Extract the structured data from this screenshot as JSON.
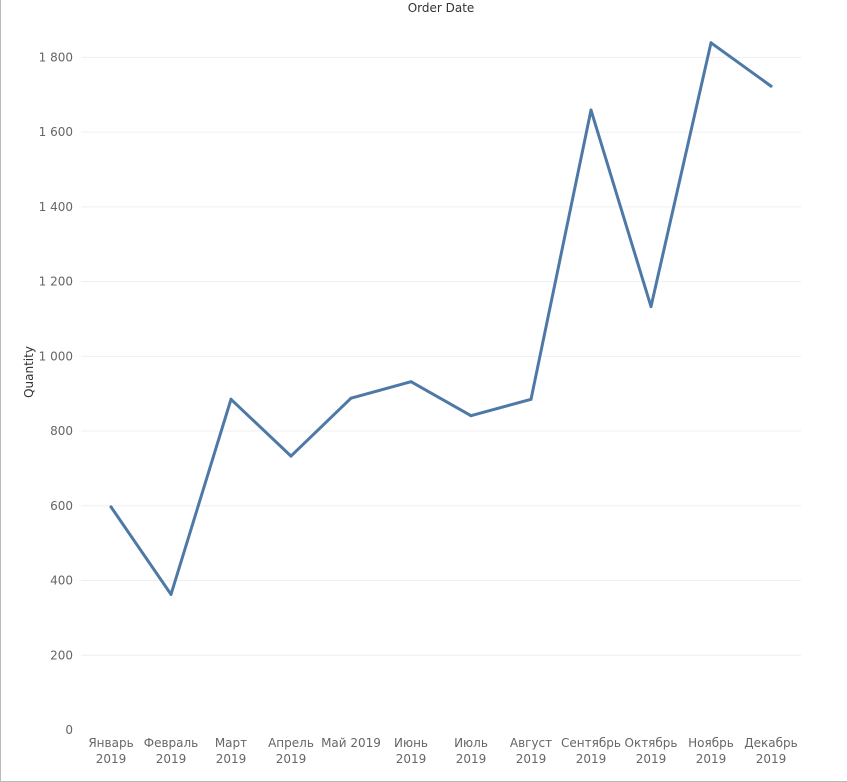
{
  "chart_data": {
    "type": "line",
    "title": "Order Date",
    "xlabel": "",
    "ylabel": "Quantity",
    "categories": [
      [
        "Январь",
        "2019"
      ],
      [
        "Февраль",
        "2019"
      ],
      [
        "Март",
        "2019"
      ],
      [
        "Апрель",
        "2019"
      ],
      [
        "Май 2019"
      ],
      [
        "Июнь",
        "2019"
      ],
      [
        "Июль",
        "2019"
      ],
      [
        "Август",
        "2019"
      ],
      [
        "Сентябрь",
        "2019"
      ],
      [
        "Октябрь",
        "2019"
      ],
      [
        "Ноябрь",
        "2019"
      ],
      [
        "Декабрь",
        "2019"
      ]
    ],
    "series": [
      {
        "values": [
          597,
          363,
          885,
          733,
          888,
          932,
          841,
          885,
          1659,
          1133,
          1839,
          1723
        ]
      }
    ],
    "ylim": [
      0,
      1900
    ],
    "yticks": [
      0,
      200,
      400,
      600,
      800,
      1000,
      1200,
      1400,
      1600,
      1800
    ],
    "ytick_labels": [
      "0",
      "200",
      "400",
      "600",
      "800",
      "1 000",
      "1 200",
      "1 400",
      "1 600",
      "1 800"
    ],
    "grid": true,
    "legend": "none",
    "line_color": "#4e79a7"
  }
}
